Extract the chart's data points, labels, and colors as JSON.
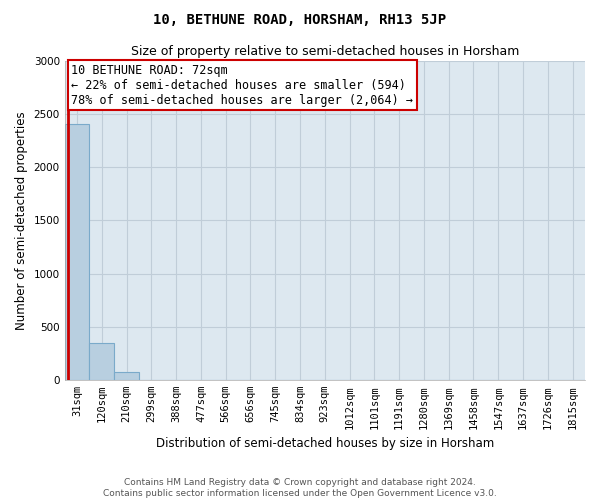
{
  "title": "10, BETHUNE ROAD, HORSHAM, RH13 5JP",
  "subtitle": "Size of property relative to semi-detached houses in Horsham",
  "xlabel": "Distribution of semi-detached houses by size in Horsham",
  "ylabel": "Number of semi-detached properties",
  "annotation_line1": "10 BETHUNE ROAD: 72sqm",
  "annotation_line2": "← 22% of semi-detached houses are smaller (594)",
  "annotation_line3": "78% of semi-detached houses are larger (2,064) →",
  "footer_line1": "Contains HM Land Registry data © Crown copyright and database right 2024.",
  "footer_line2": "Contains public sector information licensed under the Open Government Licence v3.0.",
  "ylim": [
    0,
    3000
  ],
  "bar_color": "#b8cfe0",
  "bar_edge_color": "#7aaaca",
  "vline_color": "#cc0000",
  "annotation_box_edge_color": "#cc0000",
  "plot_bg_color": "#dde8f0",
  "figure_bg_color": "#ffffff",
  "grid_color": "#c0cdd8",
  "bin_labels": [
    "31sqm",
    "120sqm",
    "210sqm",
    "299sqm",
    "388sqm",
    "477sqm",
    "566sqm",
    "656sqm",
    "745sqm",
    "834sqm",
    "923sqm",
    "1012sqm",
    "1101sqm",
    "1191sqm",
    "1280sqm",
    "1369sqm",
    "1458sqm",
    "1547sqm",
    "1637sqm",
    "1726sqm",
    "1815sqm"
  ],
  "counts": [
    2400,
    348,
    80,
    5,
    2,
    1,
    0,
    0,
    0,
    0,
    0,
    0,
    0,
    0,
    0,
    0,
    0,
    0,
    0,
    0,
    0
  ],
  "vline_x": -0.38,
  "annotation_fontsize": 8.5,
  "title_fontsize": 10,
  "subtitle_fontsize": 9,
  "ylabel_fontsize": 8.5,
  "xlabel_fontsize": 8.5,
  "tick_fontsize": 7.5,
  "footer_fontsize": 6.5
}
